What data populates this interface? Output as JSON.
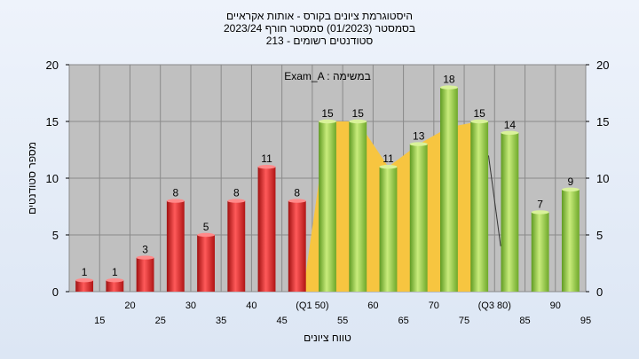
{
  "chart_data": {
    "type": "bar",
    "title": [
      "היסטוגרמת ציונים בקורס - אותות אקראיים",
      "בסמסטר  (01/2023)  סמסטר חורף  2023/24",
      "סטודנטים רשומים - 213"
    ],
    "subtitle": "Exam_A : במשימה",
    "xlabel": "טווח ציונים",
    "ylabel": "מספר סטודנטים",
    "ylim": [
      0,
      20
    ],
    "yticks": [
      0,
      5,
      10,
      15,
      20
    ],
    "x": [
      15,
      20,
      25,
      30,
      35,
      40,
      45,
      50,
      55,
      60,
      65,
      70,
      75,
      80,
      85,
      90,
      95
    ],
    "values": [
      1,
      1,
      3,
      8,
      5,
      8,
      11,
      8,
      15,
      15,
      11,
      13,
      18,
      15,
      14,
      7,
      9
    ],
    "bar_colors": [
      "red",
      "red",
      "red",
      "red",
      "red",
      "red",
      "red",
      "red",
      "green",
      "green",
      "green",
      "green",
      "green",
      "green",
      "green",
      "green",
      "green"
    ],
    "x_tick_labels": [
      "15",
      "20",
      "25",
      "30",
      "35",
      "40",
      "45",
      "(Q1 50)",
      "55",
      "60",
      "65",
      "70",
      "75",
      "(Q3 80)",
      "85",
      "90",
      "95"
    ],
    "grid": true,
    "colors": {
      "red": "#e02828",
      "green": "#8cc63f",
      "area": "#f7c540",
      "plot_bg": "#c0c0c0"
    }
  }
}
